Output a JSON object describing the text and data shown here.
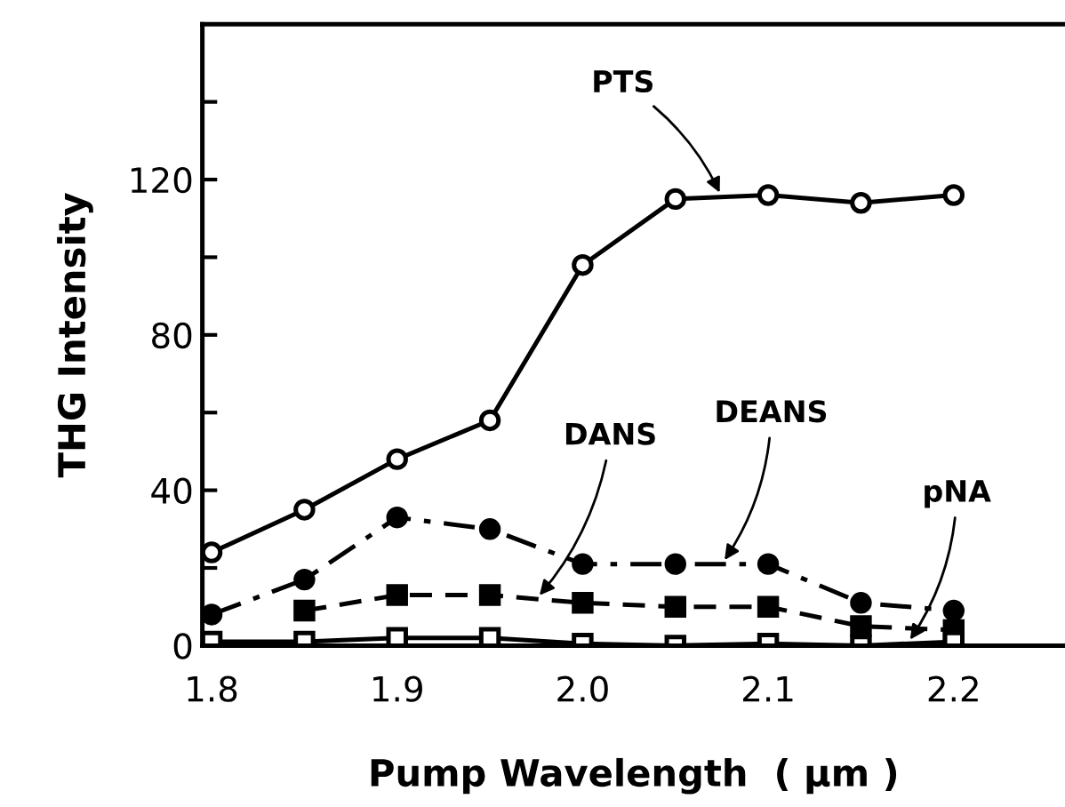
{
  "chart_data": {
    "type": "line",
    "xlabel": "Pump Wavelength  ( μm )",
    "ylabel": "THG Intensity",
    "x": [
      1.8,
      1.85,
      1.9,
      1.95,
      2.0,
      2.05,
      2.1,
      2.15,
      2.2
    ],
    "series": [
      {
        "name": "PTS",
        "color": "#000000",
        "marker": "circle",
        "line_style": "solid",
        "values": [
          24,
          35,
          48,
          58,
          98,
          115,
          116,
          114,
          116
        ]
      },
      {
        "name": "DEANS",
        "color": "#000000",
        "marker": "circle",
        "line_style": "dashdot",
        "values": [
          8,
          17,
          33,
          30,
          21,
          21,
          21,
          11,
          9
        ]
      },
      {
        "name": "DANS",
        "color": "#000000",
        "marker": "square",
        "line_style": "dashed",
        "values": [
          null,
          9,
          13,
          13,
          11,
          10,
          10,
          5,
          4
        ]
      },
      {
        "name": "pNA",
        "color": "#000000",
        "marker": "square",
        "line_style": "solid",
        "values": [
          1,
          1,
          2,
          2,
          0.5,
          0,
          0.5,
          0,
          1
        ]
      }
    ],
    "xlim": [
      1.795,
      2.26
    ],
    "ylim": [
      0,
      160
    ],
    "xticks": [
      1.8,
      1.9,
      {
        "value": 2.0,
        "label": "2.0"
      },
      2.1,
      2.2
    ],
    "yticks": [
      0,
      {
        "value": 20,
        "label": null
      },
      40,
      {
        "value": 60,
        "label": null
      },
      80,
      {
        "value": 100,
        "label": null
      },
      120,
      {
        "value": 140,
        "label": null
      }
    ],
    "grid": false,
    "legend": false
  }
}
